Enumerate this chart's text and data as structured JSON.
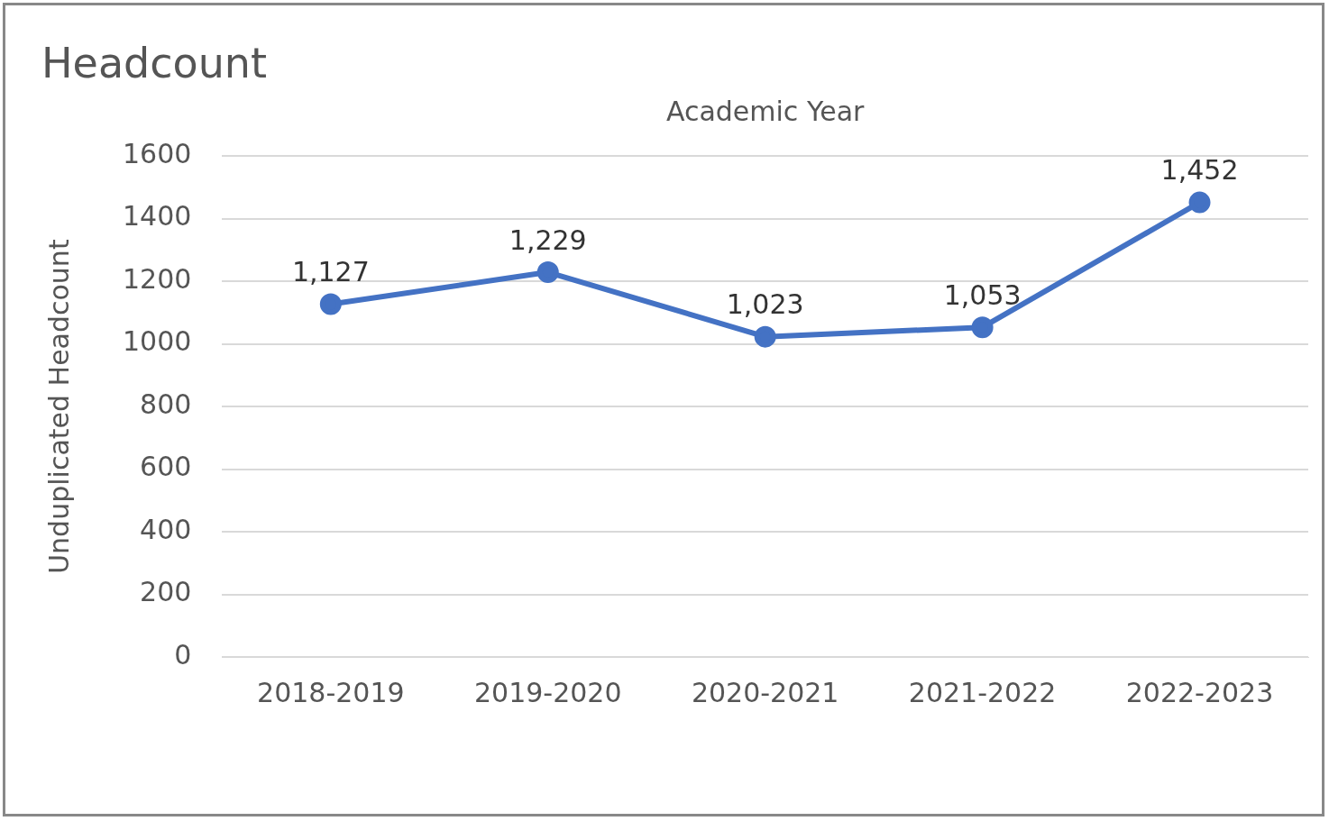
{
  "chart_data": {
    "type": "line",
    "title": "Headcount",
    "xlabel": "Academic Year",
    "ylabel": "Unduplicated Headcount",
    "categories": [
      "2018-2019",
      "2019-2020",
      "2020-2021",
      "2021-2022",
      "2022-2023"
    ],
    "series": [
      {
        "color": "#4472c4",
        "values": [
          1127,
          1229,
          1023,
          1053,
          1452
        ],
        "value_labels": [
          "1,127",
          "1,229",
          "1,023",
          "1,053",
          "1,452"
        ]
      }
    ],
    "ylim": [
      0,
      1600
    ],
    "yticks": [
      0,
      200,
      400,
      600,
      800,
      1000,
      1200,
      1400,
      1600
    ],
    "grid": "y",
    "legend": false,
    "marker": "circle",
    "line_style": "solid"
  }
}
